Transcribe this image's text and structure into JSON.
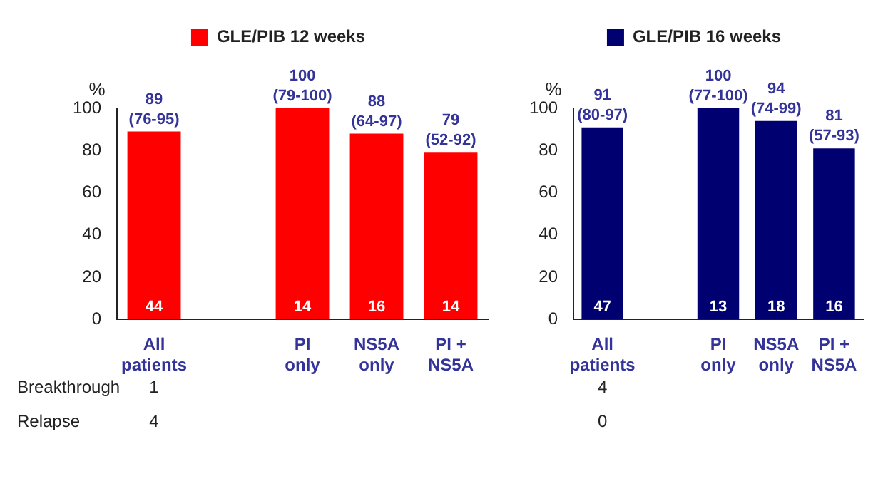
{
  "chart_data": [
    {
      "type": "bar",
      "ylabel": "%",
      "categories": [
        "All patients",
        null,
        "PI only",
        "NS5A only",
        "PI + NS5A"
      ],
      "ylim": [
        0,
        100
      ],
      "yticks": [
        0,
        20,
        40,
        60,
        80,
        100
      ],
      "grid": false,
      "legend": "top",
      "series": [
        {
          "name": "GLE/PIB 12 weeks",
          "color": "#ff0000",
          "values": [
            89,
            null,
            100,
            88,
            79
          ],
          "value_labels": [
            "89 (76-95)",
            null,
            "100 (79-100)",
            "88 (64-97)",
            "79 (52-92)"
          ]
        }
      ],
      "annotations": [
        "Breakthrough",
        "1",
        "Relapse",
        "4",
        {
          "text": "44",
          "x": "All patients",
          "y": 0
        },
        {
          "text": "14",
          "x": "PI only",
          "y": 0
        },
        {
          "text": "16",
          "x": "NS5A only",
          "y": 0
        },
        {
          "text": "14",
          "x": "PI + NS5A",
          "y": 0
        }
      ]
    },
    {
      "type": "bar",
      "ylabel": "%",
      "categories": [
        "All patients",
        null,
        "PI only",
        "NS5A only",
        "PI + NS5A"
      ],
      "ylim": [
        0,
        100
      ],
      "yticks": [
        0,
        20,
        40,
        60,
        80,
        100
      ],
      "grid": false,
      "legend": "top",
      "series": [
        {
          "name": "GLE/PIB 16 weeks",
          "color": "#000070",
          "values": [
            91,
            null,
            100,
            94,
            81
          ],
          "value_labels": [
            "91 (80-97)",
            null,
            "100 (77-100)",
            "94 (74-99)",
            "81 (57-93)"
          ]
        }
      ],
      "annotations": [
        {
          "text": "47",
          "x": "All patients",
          "y": 0
        },
        {
          "text": "13",
          "x": "PI only",
          "y": 0
        },
        {
          "text": "18",
          "x": "NS5A only",
          "y": 0
        },
        {
          "text": "16",
          "x": "PI + NS5A",
          "y": 0
        },
        "4",
        "0"
      ]
    }
  ]
}
